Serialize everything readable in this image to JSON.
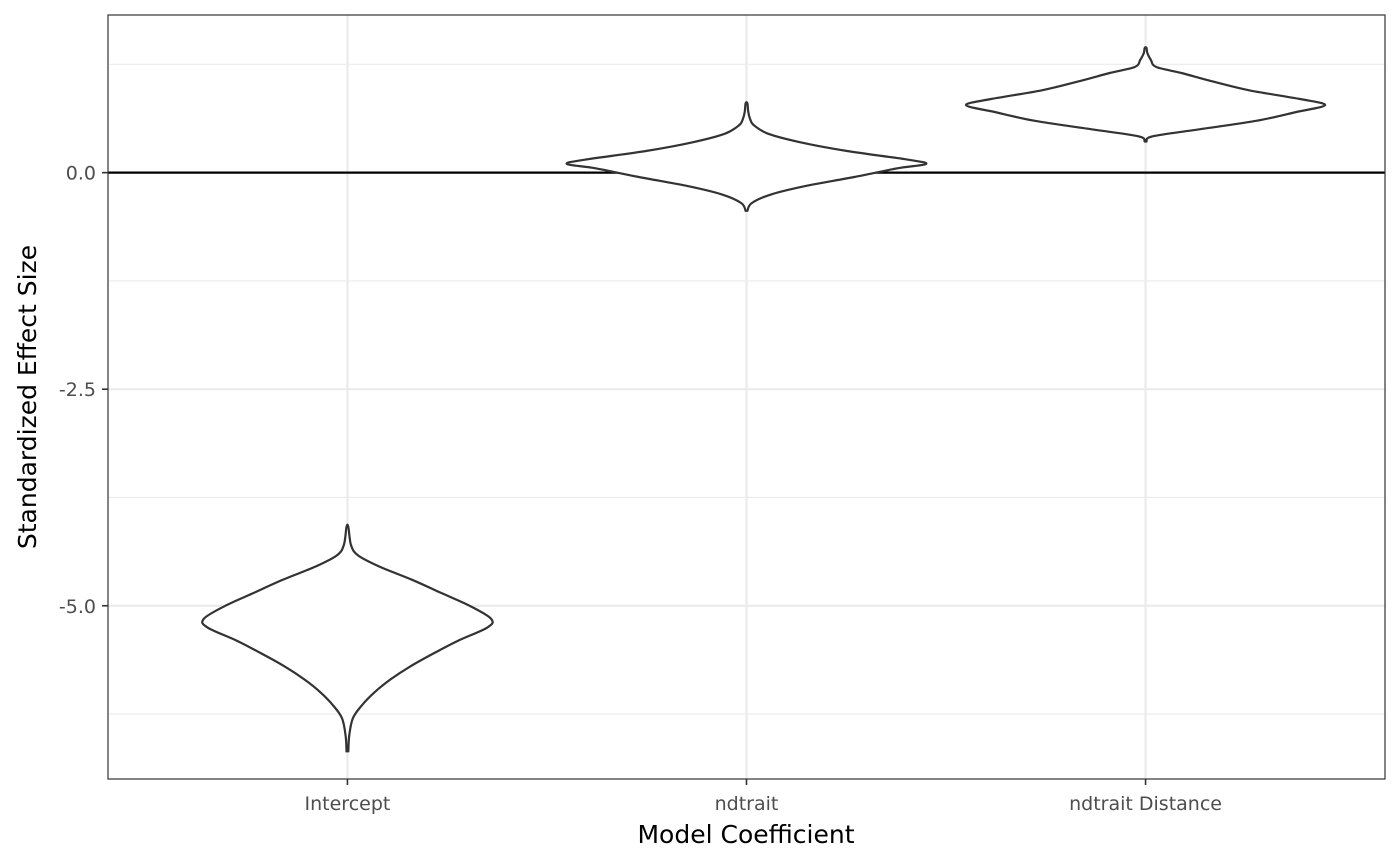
{
  "chart_data": {
    "type": "violin",
    "title": "",
    "xlabel": "Model Coefficient",
    "ylabel": "Standardized Effect Size",
    "categories": [
      "Intercept",
      "ndtrait",
      "ndtrait Distance"
    ],
    "ylim": [
      -7.0,
      1.82
    ],
    "y_ticks": [
      -5.0,
      -2.5,
      0.0
    ],
    "y_tick_labels": [
      "-5.0",
      "-2.5",
      "0.0"
    ],
    "reference_line": {
      "y": 0.0
    },
    "grid": true,
    "legend": "none",
    "violins": [
      {
        "category": "Intercept",
        "min": -6.68,
        "max": -4.09,
        "profile": [
          [
            -6.68,
            0.005
          ],
          [
            -6.5,
            0.01
          ],
          [
            -6.3,
            0.03
          ],
          [
            -6.15,
            0.08
          ],
          [
            -6.0,
            0.15
          ],
          [
            -5.85,
            0.24
          ],
          [
            -5.7,
            0.35
          ],
          [
            -5.55,
            0.48
          ],
          [
            -5.4,
            0.62
          ],
          [
            -5.25,
            0.78
          ],
          [
            -5.15,
            0.8
          ],
          [
            -5.0,
            0.68
          ],
          [
            -4.85,
            0.52
          ],
          [
            -4.7,
            0.36
          ],
          [
            -4.55,
            0.18
          ],
          [
            -4.42,
            0.06
          ],
          [
            -4.3,
            0.02
          ],
          [
            -4.09,
            0.005
          ]
        ]
      },
      {
        "category": "ndtrait",
        "min": -0.44,
        "max": 0.8,
        "profile": [
          [
            -0.44,
            0.005
          ],
          [
            -0.35,
            0.03
          ],
          [
            -0.25,
            0.14
          ],
          [
            -0.15,
            0.34
          ],
          [
            -0.05,
            0.6
          ],
          [
            0.05,
            0.84
          ],
          [
            0.1,
            1.0
          ],
          [
            0.15,
            0.9
          ],
          [
            0.25,
            0.56
          ],
          [
            0.35,
            0.3
          ],
          [
            0.45,
            0.12
          ],
          [
            0.55,
            0.04
          ],
          [
            0.62,
            0.02
          ],
          [
            0.7,
            0.01
          ],
          [
            0.8,
            0.005
          ]
        ]
      },
      {
        "category": "ndtrait Distance",
        "min": 0.36,
        "max": 1.44,
        "profile": [
          [
            0.36,
            0.005
          ],
          [
            0.42,
            0.04
          ],
          [
            0.5,
            0.3
          ],
          [
            0.6,
            0.62
          ],
          [
            0.7,
            0.84
          ],
          [
            0.78,
            1.0
          ],
          [
            0.85,
            0.86
          ],
          [
            0.95,
            0.58
          ],
          [
            1.05,
            0.38
          ],
          [
            1.15,
            0.2
          ],
          [
            1.22,
            0.06
          ],
          [
            1.3,
            0.03
          ],
          [
            1.38,
            0.01
          ],
          [
            1.44,
            0.005
          ]
        ]
      }
    ]
  }
}
